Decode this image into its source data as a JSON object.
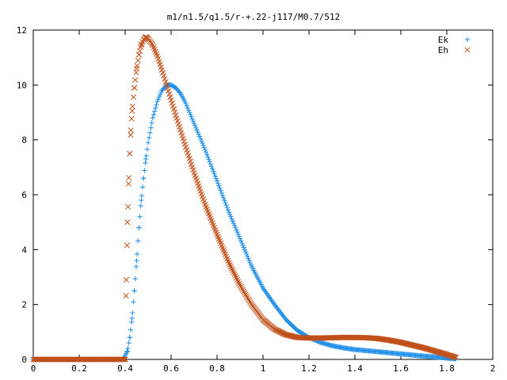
{
  "chart_data": {
    "type": "scatter",
    "title": "m1/n1.5/q1.5/r-+.22-j117/M0.7/512",
    "xlabel": "",
    "ylabel": "",
    "xlim": [
      0,
      2
    ],
    "ylim": [
      0,
      12
    ],
    "x_ticks": [
      "0",
      "0.2",
      "0.4",
      "0.6",
      "0.8",
      "1",
      "1.2",
      "1.4",
      "1.6",
      "1.8",
      "2"
    ],
    "y_ticks": [
      "0",
      "2",
      "4",
      "6",
      "8",
      "10",
      "12"
    ],
    "grid": false,
    "legend_position": "top-right",
    "series": [
      {
        "name": "Ek",
        "marker": "plus",
        "color": "#1f8ee6",
        "x": [
          0,
          0.1,
          0.2,
          0.3,
          0.39,
          0.41,
          0.42,
          0.43,
          0.44,
          0.45,
          0.46,
          0.47,
          0.48,
          0.49,
          0.5,
          0.52,
          0.54,
          0.56,
          0.58,
          0.6,
          0.62,
          0.64,
          0.66,
          0.68,
          0.7,
          0.75,
          0.8,
          0.85,
          0.9,
          0.95,
          1.0,
          1.05,
          1.1,
          1.15,
          1.2,
          1.25,
          1.3,
          1.35,
          1.4,
          1.45,
          1.5,
          1.55,
          1.6,
          1.65,
          1.7,
          1.75,
          1.8,
          1.84
        ],
        "values": [
          0,
          0,
          0,
          0,
          0,
          0.3,
          0.8,
          1.5,
          2.5,
          3.6,
          4.8,
          5.8,
          6.6,
          7.3,
          7.9,
          8.8,
          9.4,
          9.8,
          10.0,
          10.0,
          9.9,
          9.7,
          9.4,
          9.0,
          8.6,
          7.6,
          6.5,
          5.4,
          4.4,
          3.4,
          2.6,
          2.0,
          1.45,
          1.05,
          0.8,
          0.62,
          0.5,
          0.42,
          0.36,
          0.32,
          0.28,
          0.24,
          0.2,
          0.16,
          0.12,
          0.09,
          0.05,
          0.02
        ]
      },
      {
        "name": "Eh",
        "marker": "cross",
        "color": "#c0501a",
        "x": [
          0,
          0.1,
          0.2,
          0.3,
          0.4,
          0.405,
          0.41,
          0.415,
          0.42,
          0.425,
          0.43,
          0.44,
          0.45,
          0.46,
          0.47,
          0.48,
          0.49,
          0.5,
          0.52,
          0.54,
          0.56,
          0.58,
          0.6,
          0.62,
          0.65,
          0.7,
          0.75,
          0.8,
          0.85,
          0.9,
          0.95,
          1.0,
          1.05,
          1.1,
          1.15,
          1.2,
          1.25,
          1.3,
          1.35,
          1.4,
          1.45,
          1.5,
          1.55,
          1.6,
          1.65,
          1.7,
          1.75,
          1.8,
          1.84
        ],
        "values": [
          0,
          0,
          0,
          0,
          0,
          2.9,
          5.0,
          6.4,
          7.5,
          8.35,
          9.05,
          9.9,
          10.6,
          11.1,
          11.45,
          11.65,
          11.75,
          11.7,
          11.45,
          11.05,
          10.55,
          10.0,
          9.45,
          8.9,
          8.1,
          6.8,
          5.6,
          4.55,
          3.55,
          2.7,
          2.0,
          1.45,
          1.1,
          0.9,
          0.8,
          0.78,
          0.78,
          0.79,
          0.8,
          0.8,
          0.79,
          0.76,
          0.7,
          0.62,
          0.52,
          0.42,
          0.3,
          0.18,
          0.07
        ]
      }
    ]
  }
}
